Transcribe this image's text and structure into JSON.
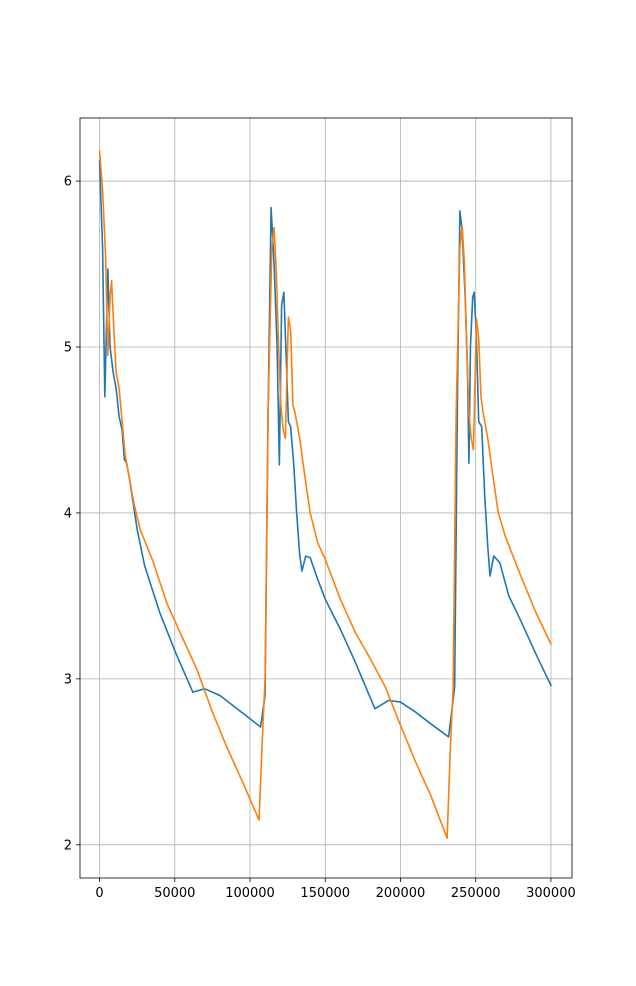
{
  "chart_data": {
    "type": "line",
    "title": "",
    "xlabel": "",
    "ylabel": "",
    "xlim": [
      -13000,
      314000
    ],
    "ylim": [
      1.8,
      6.38
    ],
    "grid": true,
    "x_ticks": [
      0,
      50000,
      100000,
      150000,
      200000,
      250000,
      300000
    ],
    "x_tick_labels": [
      "0",
      "50000",
      "100000",
      "150000",
      "200000",
      "250000",
      "300000"
    ],
    "y_ticks": [
      2,
      3,
      4,
      5,
      6
    ],
    "y_tick_labels": [
      "2",
      "3",
      "4",
      "5",
      "6"
    ],
    "series": [
      {
        "color": "#1f77b4",
        "points": [
          [
            0,
            6.12
          ],
          [
            2000,
            5.6
          ],
          [
            3500,
            4.7
          ],
          [
            5500,
            5.47
          ],
          [
            7000,
            5.0
          ],
          [
            9000,
            4.85
          ],
          [
            11000,
            4.75
          ],
          [
            13000,
            4.58
          ],
          [
            15000,
            4.5
          ],
          [
            16500,
            4.32
          ],
          [
            18000,
            4.3
          ],
          [
            20000,
            4.2
          ],
          [
            22000,
            4.08
          ],
          [
            25000,
            3.9
          ],
          [
            30000,
            3.68
          ],
          [
            40000,
            3.4
          ],
          [
            50000,
            3.17
          ],
          [
            62000,
            2.92
          ],
          [
            70000,
            2.94
          ],
          [
            80000,
            2.9
          ],
          [
            90000,
            2.83
          ],
          [
            100000,
            2.76
          ],
          [
            107000,
            2.71
          ],
          [
            110000,
            2.9
          ],
          [
            112000,
            4.6
          ],
          [
            114000,
            5.84
          ],
          [
            116000,
            5.5
          ],
          [
            118000,
            5.0
          ],
          [
            119500,
            4.29
          ],
          [
            121000,
            5.25
          ],
          [
            122500,
            5.33
          ],
          [
            124000,
            4.95
          ],
          [
            125500,
            4.55
          ],
          [
            127000,
            4.52
          ],
          [
            129000,
            4.3
          ],
          [
            131000,
            4.0
          ],
          [
            133000,
            3.75
          ],
          [
            134500,
            3.65
          ],
          [
            137000,
            3.74
          ],
          [
            140000,
            3.73
          ],
          [
            145000,
            3.6
          ],
          [
            150000,
            3.48
          ],
          [
            160000,
            3.3
          ],
          [
            170000,
            3.1
          ],
          [
            183000,
            2.82
          ],
          [
            192000,
            2.87
          ],
          [
            200000,
            2.86
          ],
          [
            210000,
            2.8
          ],
          [
            220000,
            2.73
          ],
          [
            232000,
            2.65
          ],
          [
            236000,
            2.95
          ],
          [
            238000,
            4.8
          ],
          [
            239500,
            5.82
          ],
          [
            241000,
            5.7
          ],
          [
            243000,
            5.3
          ],
          [
            244500,
            4.88
          ],
          [
            245500,
            4.3
          ],
          [
            246500,
            5.0
          ],
          [
            248000,
            5.3
          ],
          [
            249000,
            5.33
          ],
          [
            250500,
            5.05
          ],
          [
            252000,
            4.55
          ],
          [
            254000,
            4.52
          ],
          [
            256000,
            4.1
          ],
          [
            258000,
            3.8
          ],
          [
            259500,
            3.62
          ],
          [
            262000,
            3.74
          ],
          [
            266000,
            3.7
          ],
          [
            272000,
            3.5
          ],
          [
            280000,
            3.35
          ],
          [
            290000,
            3.15
          ],
          [
            300000,
            2.96
          ]
        ]
      },
      {
        "color": "#ff7f0e",
        "points": [
          [
            0,
            6.18
          ],
          [
            2000,
            5.95
          ],
          [
            4000,
            5.55
          ],
          [
            5500,
            4.95
          ],
          [
            7000,
            5.3
          ],
          [
            8000,
            5.4
          ],
          [
            9500,
            5.1
          ],
          [
            11000,
            4.85
          ],
          [
            13000,
            4.75
          ],
          [
            15000,
            4.55
          ],
          [
            17000,
            4.35
          ],
          [
            20000,
            4.2
          ],
          [
            23000,
            4.05
          ],
          [
            27000,
            3.9
          ],
          [
            35000,
            3.72
          ],
          [
            45000,
            3.45
          ],
          [
            55000,
            3.25
          ],
          [
            65000,
            3.05
          ],
          [
            75000,
            2.8
          ],
          [
            85000,
            2.58
          ],
          [
            95000,
            2.38
          ],
          [
            106000,
            2.15
          ],
          [
            108000,
            2.6
          ],
          [
            110000,
            3.0
          ],
          [
            112000,
            4.6
          ],
          [
            114500,
            5.6
          ],
          [
            116000,
            5.72
          ],
          [
            117500,
            5.45
          ],
          [
            119000,
            5.0
          ],
          [
            120500,
            4.65
          ],
          [
            122000,
            4.5
          ],
          [
            123500,
            4.45
          ],
          [
            125500,
            5.18
          ],
          [
            127000,
            5.1
          ],
          [
            128500,
            4.65
          ],
          [
            130000,
            4.6
          ],
          [
            133000,
            4.45
          ],
          [
            136000,
            4.25
          ],
          [
            140000,
            4.0
          ],
          [
            145000,
            3.82
          ],
          [
            150000,
            3.72
          ],
          [
            160000,
            3.48
          ],
          [
            170000,
            3.28
          ],
          [
            180000,
            3.12
          ],
          [
            190000,
            2.95
          ],
          [
            200000,
            2.72
          ],
          [
            210000,
            2.5
          ],
          [
            220000,
            2.3
          ],
          [
            231000,
            2.04
          ],
          [
            233000,
            2.55
          ],
          [
            235000,
            2.95
          ],
          [
            237000,
            4.6
          ],
          [
            239500,
            5.6
          ],
          [
            241000,
            5.73
          ],
          [
            242500,
            5.5
          ],
          [
            244000,
            5.0
          ],
          [
            245500,
            4.6
          ],
          [
            247000,
            4.45
          ],
          [
            248500,
            4.38
          ],
          [
            250500,
            5.17
          ],
          [
            252000,
            5.05
          ],
          [
            253500,
            4.7
          ],
          [
            255000,
            4.6
          ],
          [
            258000,
            4.45
          ],
          [
            261000,
            4.25
          ],
          [
            265000,
            4.0
          ],
          [
            270000,
            3.85
          ],
          [
            280000,
            3.62
          ],
          [
            290000,
            3.4
          ],
          [
            300000,
            3.21
          ]
        ]
      }
    ]
  }
}
